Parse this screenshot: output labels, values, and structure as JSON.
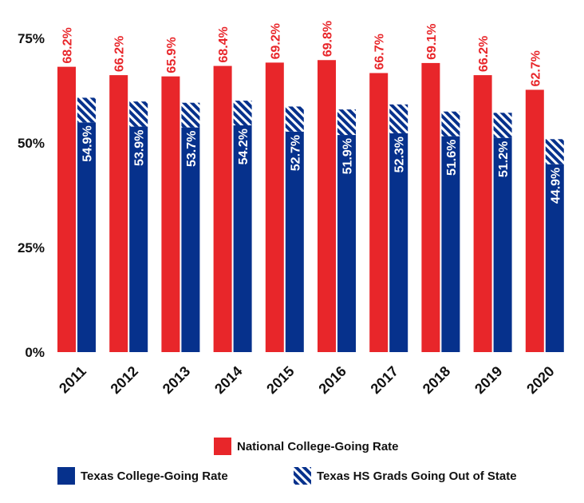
{
  "chart_data": {
    "type": "bar",
    "categories": [
      "2011",
      "2012",
      "2013",
      "2014",
      "2015",
      "2016",
      "2017",
      "2018",
      "2019",
      "2020"
    ],
    "series": [
      {
        "name": "National College-Going Rate",
        "values": [
          68.2,
          66.2,
          65.9,
          68.4,
          69.2,
          69.8,
          66.7,
          69.1,
          66.2,
          62.7
        ],
        "labels": [
          "68.2%",
          "66.2%",
          "65.9%",
          "68.4%",
          "69.2%",
          "69.8%",
          "66.7%",
          "69.1%",
          "66.2%",
          "62.7%"
        ],
        "color": "#e8262a"
      },
      {
        "name": "Texas College-Going Rate",
        "values": [
          54.9,
          53.9,
          53.7,
          54.2,
          52.7,
          51.9,
          52.3,
          51.6,
          51.2,
          44.9
        ],
        "labels": [
          "54.9%",
          "53.9%",
          "53.7%",
          "54.2%",
          "52.7%",
          "51.9%",
          "52.3%",
          "51.6%",
          "51.2%",
          "44.9%"
        ],
        "color": "#06318c"
      },
      {
        "name": "Texas HS Grads Going Out of State",
        "values": [
          5.9,
          6.0,
          5.9,
          5.9,
          6.0,
          6.1,
          6.9,
          5.9,
          6.0,
          6.0
        ],
        "color": "#06318c",
        "pattern": "hatched"
      }
    ],
    "ylim": [
      0,
      80
    ],
    "yticks": [
      0,
      25,
      50,
      75
    ],
    "ytick_labels": [
      "0%",
      "25%",
      "50%",
      "75%"
    ],
    "xlabel": "",
    "ylabel": "",
    "legend": [
      "National College-Going Rate",
      "Texas College-Going Rate",
      "Texas HS Grads Going Out of State"
    ]
  },
  "colors": {
    "national": "#e8262a",
    "texas": "#06318c",
    "text": "#111111"
  }
}
